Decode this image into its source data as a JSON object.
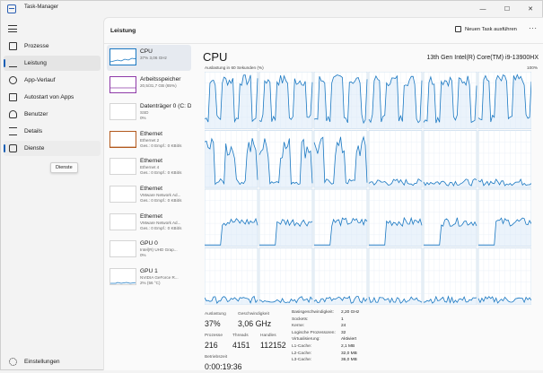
{
  "window": {
    "title": "Task-Manager",
    "minimize": "—",
    "maximize": "☐",
    "close": "✕"
  },
  "nav": {
    "items": [
      {
        "label": "Prozesse",
        "icon": "processes-icon"
      },
      {
        "label": "Leistung",
        "icon": "performance-icon",
        "active": true
      },
      {
        "label": "App-Verlauf",
        "icon": "app-history-icon"
      },
      {
        "label": "Autostart von Apps",
        "icon": "startup-icon"
      },
      {
        "label": "Benutzer",
        "icon": "users-icon"
      },
      {
        "label": "Details",
        "icon": "details-icon"
      },
      {
        "label": "Dienste",
        "icon": "services-icon"
      }
    ],
    "tooltip": "Dienste",
    "settings": "Einstellungen"
  },
  "header": {
    "title": "Leistung",
    "new_task": "Neuen Task ausführen",
    "more": "···"
  },
  "devices": [
    {
      "name": "CPU",
      "sub1": "37% 3,06 GHz",
      "sub2": "",
      "color": "#1a78c2"
    },
    {
      "name": "Arbeitsspeicher",
      "sub1": "20,5/31,7 GB (65%)",
      "sub2": "",
      "color": "#8e3aa8"
    },
    {
      "name": "Datenträger 0 (C: D",
      "sub1": "SSD",
      "sub2": "0%",
      "color": "#4d9a3a"
    },
    {
      "name": "Ethernet",
      "sub1": "Ethernet 2",
      "sub2": "Ges.: 0 Empf.: 0 KBit/s",
      "color": "#b35a1e"
    },
    {
      "name": "Ethernet",
      "sub1": "Ethernet 4",
      "sub2": "Ges.: 0 Empf.: 0 KBit/s",
      "color": "#b35a1e"
    },
    {
      "name": "Ethernet",
      "sub1": "VMware Network Ad...",
      "sub2": "Ges.: 0 Empf.: 0 KBit/s",
      "color": "#b35a1e"
    },
    {
      "name": "Ethernet",
      "sub1": "VMware Network Ad...",
      "sub2": "Ges.: 0 Empf.: 0 KBit/s",
      "color": "#b35a1e"
    },
    {
      "name": "GPU 0",
      "sub1": "Intel(R) UHD Grap...",
      "sub2": "0%",
      "color": "#1a78c2"
    },
    {
      "name": "GPU 1",
      "sub1": "NVIDIA GeForce R...",
      "sub2": "2% (56 °C)",
      "color": "#1a78c2"
    }
  ],
  "cpu": {
    "title": "CPU",
    "model": "13th Gen Intel(R) Core(TM) i9-13900HX",
    "graph_label": "Auslastung in 60 Sekunden (%)",
    "graph_max": "100%",
    "graph_color": "#1a78c2",
    "stats": {
      "util_label": "Auslastung",
      "util": "37%",
      "speed_label": "Geschwindigkeit",
      "speed": "3,06 GHz",
      "proc_label": "Prozesse",
      "proc": "216",
      "threads_label": "Threads",
      "threads": "4151",
      "handles_label": "Handles",
      "handles": "112152",
      "uptime_label": "Betriebszeit",
      "uptime": "0:00:19:36"
    },
    "specs": [
      {
        "k": "Basisgeschwindigkeit:",
        "v": "2,20 GHz"
      },
      {
        "k": "Sockets:",
        "v": "1"
      },
      {
        "k": "Kerne:",
        "v": "24"
      },
      {
        "k": "Logische Prozessoren:",
        "v": "32"
      },
      {
        "k": "Virtualisierung:",
        "v": "Aktiviert"
      },
      {
        "k": "L1-Cache:",
        "v": "2,1 MB"
      },
      {
        "k": "L2-Cache:",
        "v": "32,0 MB"
      },
      {
        "k": "L3-Cache:",
        "v": "36,0 MB"
      }
    ]
  }
}
